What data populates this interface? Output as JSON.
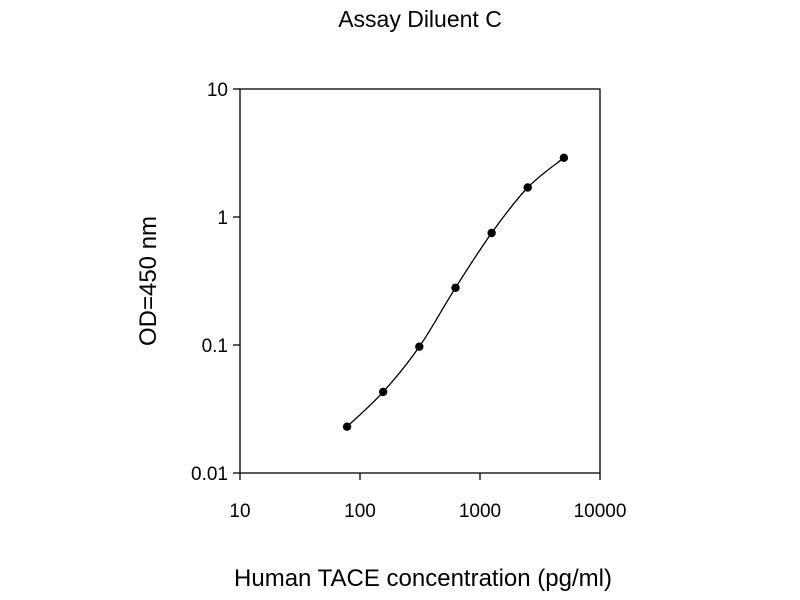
{
  "chart_data": {
    "type": "line",
    "title": "Assay Diluent C",
    "xlabel": "Human TACE concentration (pg/ml)",
    "ylabel": "OD=450 nm",
    "x_scale": "log",
    "y_scale": "log",
    "xlim": [
      10,
      10000
    ],
    "ylim": [
      0.01,
      10
    ],
    "x_ticks": [
      "10",
      "100",
      "1000",
      "10000"
    ],
    "y_ticks": [
      "0.01",
      "0.1",
      "1",
      "10"
    ],
    "grid": false,
    "legend": "none",
    "series": [
      {
        "x": [
          78,
          156,
          312,
          625,
          1250,
          2500,
          5000
        ],
        "y": [
          0.023,
          0.043,
          0.097,
          0.28,
          0.75,
          1.7,
          2.9
        ]
      }
    ],
    "colors": {
      "line": "#000000",
      "marker": "#000000",
      "axis": "#000000"
    }
  }
}
